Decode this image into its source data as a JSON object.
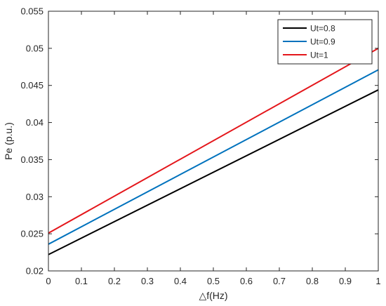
{
  "chart_data": {
    "type": "line",
    "xlabel": "△f(Hz)",
    "ylabel": "Pe (p.u.)",
    "xlim": [
      0,
      1
    ],
    "ylim": [
      0.02,
      0.055
    ],
    "x_ticks": [
      "0",
      "0.1",
      "0.2",
      "0.3",
      "0.4",
      "0.5",
      "0.6",
      "0.7",
      "0.8",
      "0.9",
      "1"
    ],
    "y_ticks": [
      "0.02",
      "0.025",
      "0.03",
      "0.035",
      "0.04",
      "0.045",
      "0.05",
      "0.055"
    ],
    "grid": false,
    "legend_position": "top-right",
    "x": [
      0,
      1
    ],
    "series": [
      {
        "name": "Ut=0.8",
        "color": "#000000",
        "values": [
          0.0222,
          0.0444
        ]
      },
      {
        "name": "Ut=0.9",
        "color": "#0072BD",
        "values": [
          0.0236,
          0.0471
        ]
      },
      {
        "name": "Ut=1",
        "color": "#E4161B",
        "values": [
          0.0251,
          0.05
        ]
      }
    ]
  }
}
